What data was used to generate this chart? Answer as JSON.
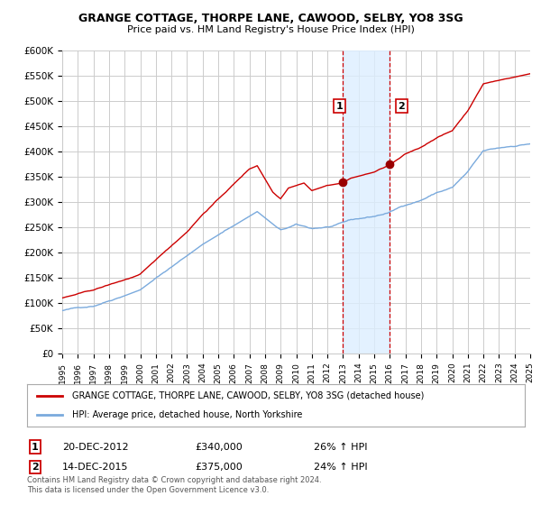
{
  "title": "GRANGE COTTAGE, THORPE LANE, CAWOOD, SELBY, YO8 3SG",
  "subtitle": "Price paid vs. HM Land Registry's House Price Index (HPI)",
  "ylabel_ticks": [
    "£0",
    "£50K",
    "£100K",
    "£150K",
    "£200K",
    "£250K",
    "£300K",
    "£350K",
    "£400K",
    "£450K",
    "£500K",
    "£550K",
    "£600K"
  ],
  "ytick_values": [
    0,
    50000,
    100000,
    150000,
    200000,
    250000,
    300000,
    350000,
    400000,
    450000,
    500000,
    550000,
    600000
  ],
  "ylim": [
    0,
    600000
  ],
  "sale1_date": 2012.96,
  "sale1_price": 340000,
  "sale2_date": 2015.96,
  "sale2_price": 375000,
  "legend_line1": "GRANGE COTTAGE, THORPE LANE, CAWOOD, SELBY, YO8 3SG (detached house)",
  "legend_line2": "HPI: Average price, detached house, North Yorkshire",
  "note1_date": "20-DEC-2012",
  "note1_price": "£340,000",
  "note1_hpi": "26% ↑ HPI",
  "note2_date": "14-DEC-2015",
  "note2_price": "£375,000",
  "note2_hpi": "24% ↑ HPI",
  "footer": "Contains HM Land Registry data © Crown copyright and database right 2024.\nThis data is licensed under the Open Government Licence v3.0.",
  "line_color_red": "#cc0000",
  "line_color_blue": "#7aaadd",
  "shade_color": "#ddeeff",
  "vline_color": "#cc0000",
  "background_color": "#ffffff",
  "grid_color": "#cccccc"
}
